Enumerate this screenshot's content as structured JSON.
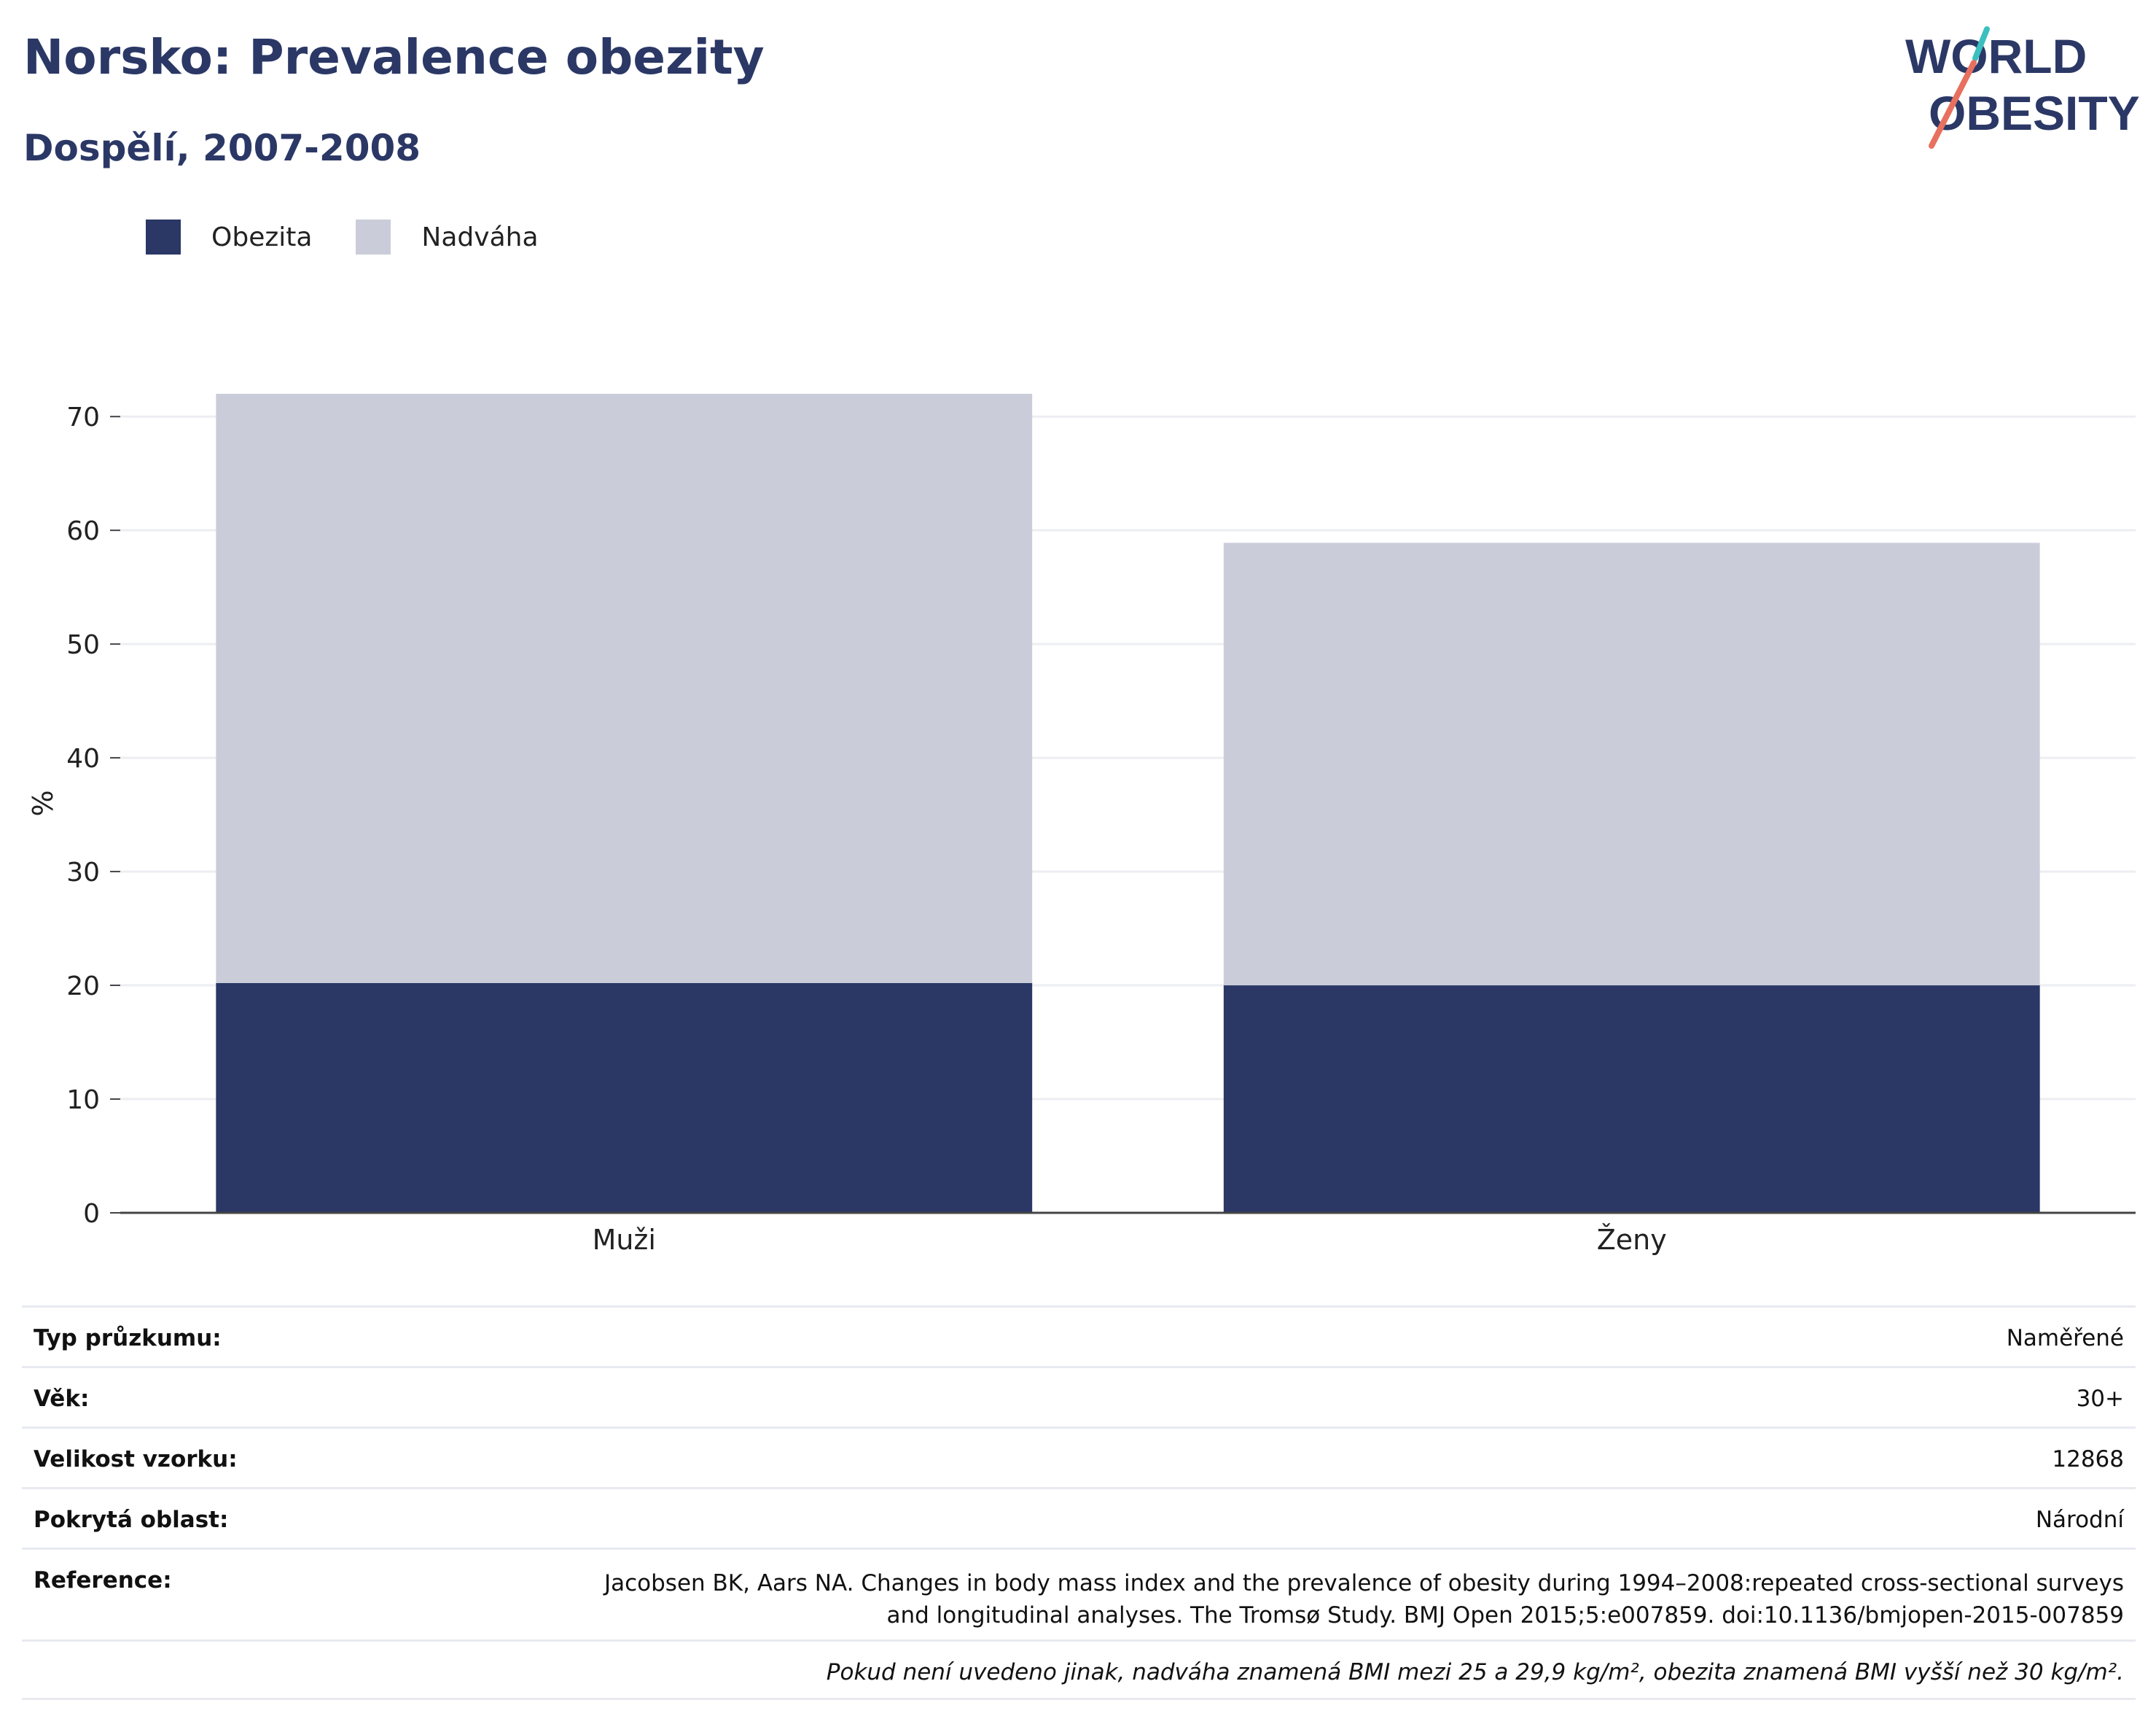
{
  "title": "Norsko: Prevalence obezity",
  "subtitle": "Dospělí, 2007-2008",
  "logo": {
    "line1": "WORLD",
    "line2": "OBESITY"
  },
  "colors": {
    "obesity": "#2b3765",
    "overweight": "#cacdd9",
    "title": "#2b3866",
    "grid": "#eceef3"
  },
  "legend": [
    {
      "label": "Obezita",
      "color": "#2b3765"
    },
    {
      "label": "Nadváha",
      "color": "#cacdd9"
    }
  ],
  "chart_data": {
    "type": "bar",
    "stacked": true,
    "categories": [
      "Muži",
      "Ženy"
    ],
    "series": [
      {
        "name": "Obezita",
        "values": [
          20.2,
          20.0
        ]
      },
      {
        "name": "Nadváha",
        "values": [
          51.8,
          38.9
        ]
      }
    ],
    "ylabel": "%",
    "ylim": [
      0,
      72
    ],
    "yticks": [
      0,
      10,
      20,
      30,
      40,
      50,
      60,
      70
    ],
    "grid": true,
    "legend_position": "top-left"
  },
  "info": {
    "rows": [
      {
        "label": "Typ průzkumu:",
        "value": "Naměřené"
      },
      {
        "label": "Věk:",
        "value": "30+"
      },
      {
        "label": "Velikost vzorku:",
        "value": "12868"
      },
      {
        "label": "Pokrytá oblast:",
        "value": "Národní"
      }
    ],
    "reference": {
      "label": "Reference:",
      "line1": "Jacobsen BK, Aars NA. Changes in body mass index and the prevalence of obesity during 1994–2008:repeated cross-sectional surveys",
      "line2": "and longitudinal analyses. The Tromsø Study. BMJ Open 2015;5:e007859. doi:10.1136/bmjopen-2015-007859"
    },
    "note": "Pokud není uvedeno jinak, nadváha znamená BMI mezi 25 a 29,9 kg/m², obezita znamená BMI vyšší než 30 kg/m²."
  }
}
